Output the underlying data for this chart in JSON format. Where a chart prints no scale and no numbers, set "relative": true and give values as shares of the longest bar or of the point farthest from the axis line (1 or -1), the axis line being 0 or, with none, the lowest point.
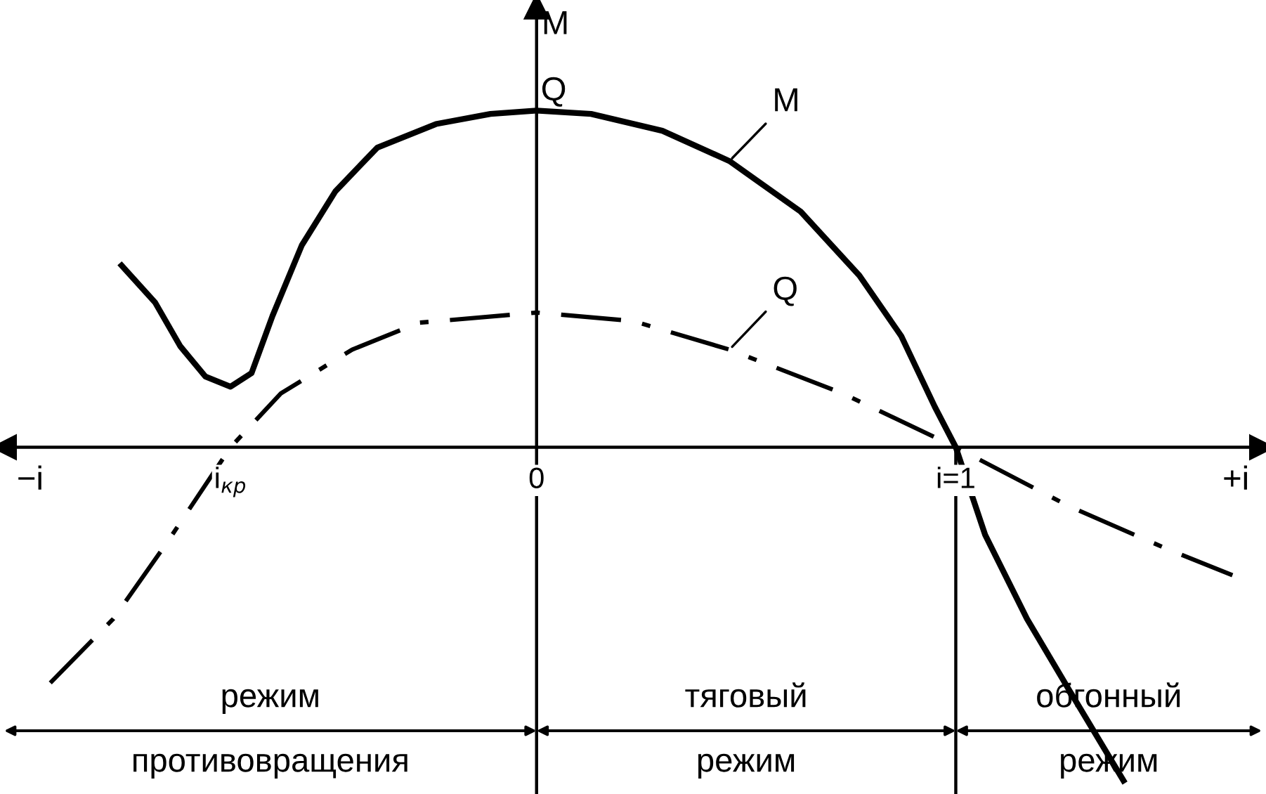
{
  "chart_data": {
    "type": "line",
    "relative": true,
    "ylabel": "M",
    "legend": false,
    "tick_labels": "x",
    "xlim": [
      -1.28,
      1.74
    ],
    "xticks": [
      {
        "value": -0.73,
        "label": "i$_{кр}$"
      },
      {
        "value": 0,
        "label": "0"
      },
      {
        "value": 1,
        "label": "i=1"
      }
    ],
    "series": [
      {
        "name": "M",
        "color": "#000000",
        "line_style": "solid",
        "x": [
          -0.99,
          -0.91,
          -0.85,
          -0.79,
          -0.73,
          -0.68,
          -0.63,
          -0.56,
          -0.48,
          -0.38,
          -0.24,
          -0.11,
          0,
          0.13,
          0.3,
          0.46,
          0.63,
          0.77,
          0.87,
          0.95,
          1.0,
          1.07,
          1.17,
          1.27,
          1.4
        ],
        "values": [
          0.54,
          0.43,
          0.3,
          0.21,
          0.18,
          0.22,
          0.39,
          0.6,
          0.76,
          0.89,
          0.96,
          0.99,
          1.0,
          0.99,
          0.94,
          0.85,
          0.7,
          0.51,
          0.33,
          0.12,
          0,
          -0.26,
          -0.51,
          -0.72,
          -0.99
        ]
      },
      {
        "name": "Q",
        "color": "#000000",
        "line_style": "dashed",
        "x": [
          -1.16,
          -1.01,
          -0.88,
          -0.73,
          -0.61,
          -0.44,
          -0.28,
          0,
          0.23,
          0.46,
          0.73,
          1.0,
          1.27,
          1.5,
          1.66
        ],
        "values": [
          -0.7,
          -0.51,
          -0.28,
          0,
          0.16,
          0.29,
          0.37,
          0.4,
          0.375,
          0.29,
          0.16,
          0,
          -0.175,
          -0.3,
          -0.38
        ]
      }
    ],
    "ref_lines": [
      {
        "axis": "x",
        "value": 1
      }
    ],
    "annotations": [
      "−i",
      "+i",
      {
        "text": "Q",
        "x": 0,
        "y": 1.0
      },
      "режим\nпротивовращения",
      "тяговый\nрежим",
      "обгонный\nрежим"
    ]
  }
}
